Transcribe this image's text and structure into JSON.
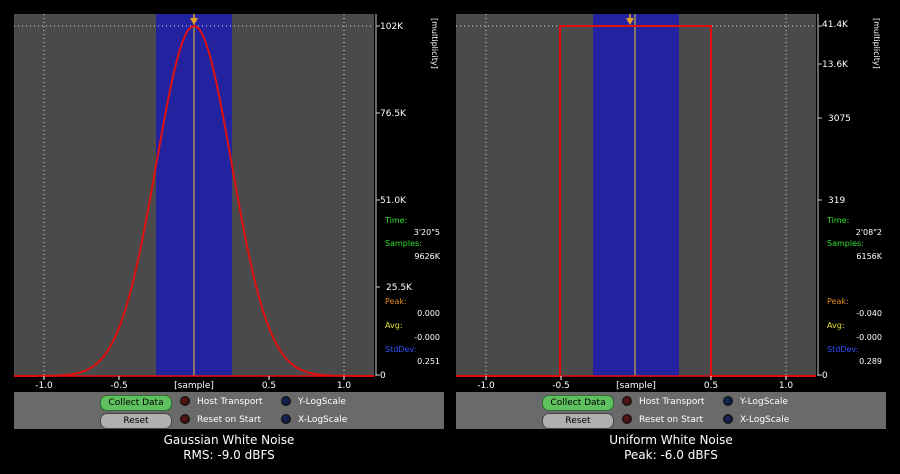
{
  "colors": {
    "plot_bg": "#4a4a4a",
    "band": "#2323a0",
    "curve": "#e01010",
    "marker": "#e8c830",
    "time": "#30e030",
    "peak": "#e08a20",
    "avg": "#e0e030",
    "stddev": "#3050ff"
  },
  "panels": [
    {
      "y_unit": "[multiplicity]",
      "x_unit": "[sample]",
      "x_ticks": [
        "-1.0",
        "-0.5",
        "0.5",
        "1.0"
      ],
      "y_ticks": [
        "102K",
        "76.5K",
        "51.0K",
        "25.5K",
        "0"
      ],
      "stats": {
        "time_label": "Time:",
        "time": "3'20\"5",
        "samples_label": "Samples:",
        "samples": "9626K",
        "peak_label": "Peak:",
        "peak": "0.000",
        "avg_label": "Avg:",
        "avg": "-0.000",
        "stddev_label": "StdDev:",
        "stddev": "0.251"
      },
      "buttons": {
        "collect": "Collect Data",
        "reset": "Reset"
      },
      "options": {
        "host": "Host Transport",
        "reset_start": "Reset on Start",
        "ylog": "Y-LogScale",
        "xlog": "X-LogScale"
      },
      "caption": {
        "title": "Gaussian White Noise",
        "subtitle": "RMS: -9.0 dBFS"
      }
    },
    {
      "y_unit": "[multiplicity]",
      "x_unit": "[sample]",
      "x_ticks": [
        "-1.0",
        "-0.5",
        "0.5",
        "1.0"
      ],
      "y_ticks": [
        "41.4K",
        "13.6K",
        "3075",
        "319",
        "0"
      ],
      "stats": {
        "time_label": "Time:",
        "time": "2'08\"2",
        "samples_label": "Samples:",
        "samples": "6156K",
        "peak_label": "Peak:",
        "peak": "-0.040",
        "avg_label": "Avg:",
        "avg": "-0.000",
        "stddev_label": "StdDev:",
        "stddev": "0.289"
      },
      "buttons": {
        "collect": "Collect Data",
        "reset": "Reset"
      },
      "options": {
        "host": "Host Transport",
        "reset_start": "Reset on Start",
        "ylog": "Y-LogScale",
        "xlog": "X-LogScale"
      },
      "caption": {
        "title": "Uniform White Noise",
        "subtitle": "Peak: -6.0 dBFS"
      }
    }
  ]
}
